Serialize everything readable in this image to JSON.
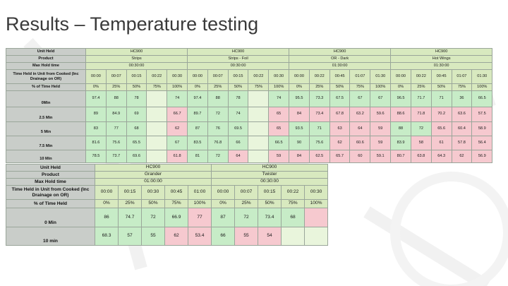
{
  "slide": {
    "title": "Results – Temperature testing"
  },
  "table1": {
    "row_labels": {
      "unit_held": "Unit Held",
      "product": "Product",
      "max_hold": "Max Hold time",
      "time_held": "Time Held in Unit from Cooked (Inc Drainage on OR)",
      "pct_held": "% of Time Held",
      "results": [
        "0Min",
        "2.5 Min",
        "5 Min",
        "7.5 Min",
        "10 Min"
      ]
    },
    "groups": [
      {
        "unit": "HC900",
        "product": "Strips",
        "max_hold": "00:30:00",
        "times": [
          "00:00",
          "00:07",
          "00:15",
          "00:22",
          "00:30"
        ],
        "pcts": [
          "0%",
          "25%",
          "50%",
          "75%",
          "100%"
        ],
        "rows": [
          [
            [
              "97.4",
              "g"
            ],
            [
              "88",
              "g"
            ],
            [
              "78",
              "g"
            ],
            [
              "",
              ""
            ],
            [
              "74",
              "g"
            ]
          ],
          [
            [
              "89",
              "g"
            ],
            [
              "84.9",
              "g"
            ],
            [
              "69",
              "g"
            ],
            [
              "",
              ""
            ],
            [
              "66.7",
              "r"
            ]
          ],
          [
            [
              "83",
              "g"
            ],
            [
              "77",
              "g"
            ],
            [
              "68",
              "g"
            ],
            [
              "",
              ""
            ],
            [
              "62",
              "r"
            ]
          ],
          [
            [
              "81.6",
              "g"
            ],
            [
              "75.6",
              "g"
            ],
            [
              "65.5",
              "g"
            ],
            [
              "",
              ""
            ],
            [
              "67",
              "g"
            ]
          ],
          [
            [
              "78.5",
              "g"
            ],
            [
              "73.7",
              "g"
            ],
            [
              "69.6",
              "g"
            ],
            [
              "",
              ""
            ],
            [
              "61.8",
              "r"
            ]
          ]
        ]
      },
      {
        "unit": "HC900",
        "product": "Strips - Foil",
        "max_hold": "00:30:00",
        "times": [
          "00:00",
          "00:07",
          "00:15",
          "00:22",
          "00:30"
        ],
        "pcts": [
          "0%",
          "25%",
          "50%",
          "75%",
          "100%"
        ],
        "rows": [
          [
            [
              "97.4",
              "g"
            ],
            [
              "88",
              "g"
            ],
            [
              "78",
              "g"
            ],
            [
              "",
              ""
            ],
            [
              "74",
              "g"
            ]
          ],
          [
            [
              "89.7",
              "g"
            ],
            [
              "72",
              "g"
            ],
            [
              "74",
              "g"
            ],
            [
              "",
              ""
            ],
            [
              "65",
              "r"
            ]
          ],
          [
            [
              "87",
              "g"
            ],
            [
              "76",
              "g"
            ],
            [
              "69.5",
              "g"
            ],
            [
              "",
              ""
            ],
            [
              "65",
              "r"
            ]
          ],
          [
            [
              "83.5",
              "g"
            ],
            [
              "76.8",
              "g"
            ],
            [
              "66",
              "g"
            ],
            [
              "",
              ""
            ],
            [
              "66.5",
              "g"
            ]
          ],
          [
            [
              "81",
              "g"
            ],
            [
              "72",
              "g"
            ],
            [
              "64",
              "r"
            ],
            [
              "",
              ""
            ],
            [
              "59",
              "r"
            ]
          ]
        ]
      },
      {
        "unit": "HC900",
        "product": "OR - Dark",
        "max_hold": "01:30:00",
        "times": [
          "00:00",
          "00:22",
          "00:45",
          "01:07",
          "01:30"
        ],
        "pcts": [
          "0%",
          "25%",
          "50%",
          "75%",
          "100%"
        ],
        "rows": [
          [
            [
              "95.5",
              "g"
            ],
            [
              "73.3",
              "g"
            ],
            [
              "67.5",
              "g"
            ],
            [
              "67",
              "g"
            ],
            [
              "67",
              "g"
            ]
          ],
          [
            [
              "84",
              "r"
            ],
            [
              "73.4",
              "r"
            ],
            [
              "67.8",
              "r"
            ],
            [
              "63.2",
              "r"
            ],
            [
              "59.6",
              "r"
            ]
          ],
          [
            [
              "93.5",
              "g"
            ],
            [
              "71",
              "g"
            ],
            [
              "63",
              "r"
            ],
            [
              "64",
              "r"
            ],
            [
              "59",
              "r"
            ]
          ],
          [
            [
              "90",
              "g"
            ],
            [
              "75.6",
              "g"
            ],
            [
              "62",
              "r"
            ],
            [
              "60.6",
              "r"
            ],
            [
              "59",
              "r"
            ]
          ],
          [
            [
              "84",
              "r"
            ],
            [
              "62.5",
              "r"
            ],
            [
              "65.7",
              "r"
            ],
            [
              "60",
              "r"
            ],
            [
              "59.1",
              "r"
            ]
          ]
        ]
      },
      {
        "unit": "HC900",
        "product": "Hot Wings",
        "max_hold": "01:30:00",
        "times": [
          "00:00",
          "00:22",
          "00:45",
          "01:07",
          "01:30"
        ],
        "pcts": [
          "0%",
          "25%",
          "50%",
          "75%",
          "100%"
        ],
        "rows": [
          [
            [
              "96.5",
              "g"
            ],
            [
              "71.7",
              "g"
            ],
            [
              "71",
              "g"
            ],
            [
              "36",
              "g"
            ],
            [
              "66.5",
              "g"
            ]
          ],
          [
            [
              "88.6",
              "r"
            ],
            [
              "71.8",
              "r"
            ],
            [
              "70.2",
              "r"
            ],
            [
              "63.6",
              "r"
            ],
            [
              "57.5",
              "r"
            ]
          ],
          [
            [
              "88",
              "g"
            ],
            [
              "72",
              "g"
            ],
            [
              "65.6",
              "r"
            ],
            [
              "60.4",
              "r"
            ],
            [
              "58.9",
              "r"
            ]
          ],
          [
            [
              "83.9",
              "g"
            ],
            [
              "58",
              "r"
            ],
            [
              "61",
              "r"
            ],
            [
              "57.8",
              "r"
            ],
            [
              "56.4",
              "r"
            ]
          ],
          [
            [
              "80.7",
              "r"
            ],
            [
              "63.8",
              "r"
            ],
            [
              "64.3",
              "r"
            ],
            [
              "62",
              "r"
            ],
            [
              "56.9",
              "r"
            ]
          ]
        ]
      }
    ]
  },
  "table2": {
    "row_labels": {
      "unit_held": "Unit Held",
      "product": "Product",
      "max_hold": "Max Hold time",
      "time_held": "Time Held in Unit from Cooked (Inc Drainage on OR)",
      "pct_held": "% of Time Held",
      "results": [
        "0 Min",
        "10 min"
      ]
    },
    "groups": [
      {
        "unit": "HC900",
        "product": "Grander",
        "max_hold": "01:00:00",
        "times": [
          "00:00",
          "00:15",
          "00:30",
          "00:45",
          "01:00"
        ],
        "pcts": [
          "0%",
          "25%",
          "50%",
          "75%",
          "100%"
        ],
        "rows": [
          [
            [
              "86",
              "g"
            ],
            [
              "74.7",
              "g"
            ],
            [
              "72",
              "g"
            ],
            [
              "66.9",
              "g"
            ],
            [
              "77",
              "r"
            ]
          ],
          [
            [
              "68.3",
              "g"
            ],
            [
              "57",
              "g"
            ],
            [
              "55",
              "g"
            ],
            [
              "62",
              "r"
            ],
            [
              "53.4",
              "r"
            ]
          ]
        ]
      },
      {
        "unit": "HC900",
        "product": "Twister",
        "max_hold": "00:30:00",
        "times": [
          "00:00",
          "00:07",
          "00:15",
          "00:22",
          "00:30"
        ],
        "pcts": [
          "0%",
          "25%",
          "50%",
          "75%",
          "100%"
        ],
        "rows": [
          [
            [
              "87",
              "g"
            ],
            [
              "72",
              "g"
            ],
            [
              "73.4",
              "g"
            ],
            [
              "68",
              "g"
            ],
            [
              "",
              "r"
            ]
          ],
          [
            [
              "66",
              "g"
            ],
            [
              "55",
              "r"
            ],
            [
              "54",
              "r"
            ],
            [
              "",
              ""
            ],
            [
              "",
              ""
            ]
          ]
        ]
      }
    ]
  }
}
